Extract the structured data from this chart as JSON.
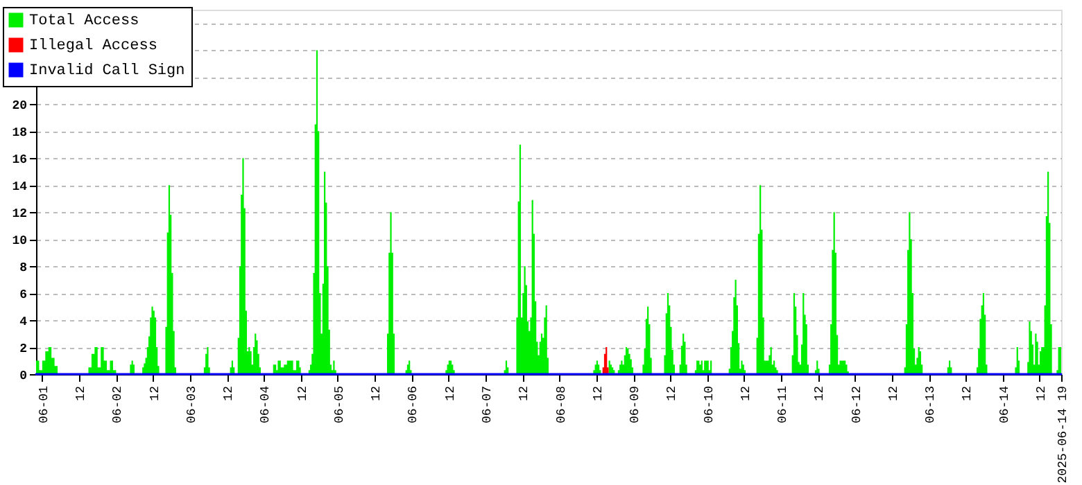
{
  "chart_data": {
    "type": "area",
    "legend": "top left",
    "grid": "y",
    "xlim": [
      "2025-05-31T22:00",
      "2025-06-14T19:00"
    ],
    "xticks": [
      {
        "value": "2025-06-01T00:00",
        "label": "06-01"
      },
      {
        "value": "2025-06-01T12:00",
        "label": "12"
      },
      {
        "value": "2025-06-02T00:00",
        "label": "06-02"
      },
      {
        "value": "2025-06-02T12:00",
        "label": "12"
      },
      {
        "value": "2025-06-03T00:00",
        "label": "06-03"
      },
      {
        "value": "2025-06-03T12:00",
        "label": "12"
      },
      {
        "value": "2025-06-04T00:00",
        "label": "06-04"
      },
      {
        "value": "2025-06-04T12:00",
        "label": "12"
      },
      {
        "value": "2025-06-05T00:00",
        "label": "06-05"
      },
      {
        "value": "2025-06-05T12:00",
        "label": "12"
      },
      {
        "value": "2025-06-06T00:00",
        "label": "06-06"
      },
      {
        "value": "2025-06-06T12:00",
        "label": "12"
      },
      {
        "value": "2025-06-07T00:00",
        "label": "06-07"
      },
      {
        "value": "2025-06-07T12:00",
        "label": "12"
      },
      {
        "value": "2025-06-08T00:00",
        "label": "06-08"
      },
      {
        "value": "2025-06-08T12:00",
        "label": "12"
      },
      {
        "value": "2025-06-09T00:00",
        "label": "06-09"
      },
      {
        "value": "2025-06-09T12:00",
        "label": "12"
      },
      {
        "value": "2025-06-10T00:00",
        "label": "06-10"
      },
      {
        "value": "2025-06-10T12:00",
        "label": "12"
      },
      {
        "value": "2025-06-11T00:00",
        "label": "06-11"
      },
      {
        "value": "2025-06-11T12:00",
        "label": "12"
      },
      {
        "value": "2025-06-12T00:00",
        "label": "06-12"
      },
      {
        "value": "2025-06-12T12:00",
        "label": "12"
      },
      {
        "value": "2025-06-13T00:00",
        "label": "06-13"
      },
      {
        "value": "2025-06-13T12:00",
        "label": "12"
      },
      {
        "value": "2025-06-14T00:00",
        "label": "06-14"
      },
      {
        "value": "2025-06-14T12:00",
        "label": "12"
      },
      {
        "value": "2025-06-14T19:00",
        "label": "2025-06-14 19"
      }
    ],
    "ylim": [
      0,
      27
    ],
    "yticks": [
      0,
      2,
      4,
      6,
      8,
      10,
      12,
      14,
      16,
      18,
      20,
      {
        "value": 22,
        "label": null
      },
      {
        "value": 24,
        "label": null
      },
      {
        "value": 26,
        "label": null
      }
    ],
    "series": [
      {
        "name": "Total Access",
        "color": "#00ee00",
        "x": [
          "2025-05-31T22:00",
          "2025-05-31T23:00",
          "2025-06-01T00:00",
          "2025-06-01T01:00",
          "2025-06-01T02:00",
          "2025-06-01T03:00",
          "2025-06-01T04:00",
          "2025-06-01T05:00",
          "2025-06-01T15:00",
          "2025-06-01T16:00",
          "2025-06-01T17:00",
          "2025-06-01T18:00",
          "2025-06-01T19:00",
          "2025-06-01T20:00",
          "2025-06-01T21:00",
          "2025-06-01T22:00",
          "2025-06-01T23:00",
          "2025-06-02T00:00",
          "2025-06-02T04:30",
          "2025-06-02T05:00",
          "2025-06-02T05:30",
          "2025-06-02T06:00",
          "2025-06-02T08:30",
          "2025-06-02T09:00",
          "2025-06-02T09:30",
          "2025-06-02T10:00",
          "2025-06-02T10:30",
          "2025-06-02T11:00",
          "2025-06-02T11:30",
          "2025-06-02T12:00",
          "2025-06-02T12:30",
          "2025-06-02T13:00",
          "2025-06-02T13:30",
          "2025-06-02T14:00",
          "2025-06-02T16:00",
          "2025-06-02T16:30",
          "2025-06-02T17:00",
          "2025-06-02T17:30",
          "2025-06-02T18:00",
          "2025-06-02T18:30",
          "2025-06-02T19:00",
          "2025-06-02T19:30",
          "2025-06-03T04:30",
          "2025-06-03T05:00",
          "2025-06-03T05:30",
          "2025-06-03T06:00",
          "2025-06-03T06:30",
          "2025-06-03T13:00",
          "2025-06-03T13:30",
          "2025-06-03T14:00",
          "2025-06-03T14:30",
          "2025-06-03T15:30",
          "2025-06-03T16:00",
          "2025-06-03T16:30",
          "2025-06-03T17:00",
          "2025-06-03T17:30",
          "2025-06-03T18:00",
          "2025-06-03T18:30",
          "2025-06-03T19:00",
          "2025-06-03T19:30",
          "2025-06-03T20:00",
          "2025-06-03T20:30",
          "2025-06-03T21:00",
          "2025-06-03T21:30",
          "2025-06-03T22:00",
          "2025-06-03T22:30",
          "2025-06-03T23:00",
          "2025-06-04T03:00",
          "2025-06-04T04:00",
          "2025-06-04T04:30",
          "2025-06-04T05:30",
          "2025-06-04T06:30",
          "2025-06-04T07:30",
          "2025-06-04T08:30",
          "2025-06-04T09:30",
          "2025-06-04T10:30",
          "2025-06-04T11:30",
          "2025-06-04T12:00",
          "2025-06-04T14:30",
          "2025-06-04T15:00",
          "2025-06-04T15:30",
          "2025-06-04T16:00",
          "2025-06-04T16:30",
          "2025-06-04T17:00",
          "2025-06-04T17:30",
          "2025-06-04T18:00",
          "2025-06-04T18:30",
          "2025-06-04T19:00",
          "2025-06-04T19:30",
          "2025-06-04T20:00",
          "2025-06-04T20:30",
          "2025-06-04T21:00",
          "2025-06-04T21:30",
          "2025-06-04T22:00",
          "2025-06-04T22:30",
          "2025-06-04T23:00",
          "2025-06-04T23:30",
          "2025-06-05T16:00",
          "2025-06-05T16:30",
          "2025-06-05T17:00",
          "2025-06-05T17:30",
          "2025-06-05T18:00",
          "2025-06-05T18:30",
          "2025-06-05T22:00",
          "2025-06-05T22:30",
          "2025-06-05T23:00",
          "2025-06-05T23:30",
          "2025-06-06T00:00",
          "2025-06-06T11:00",
          "2025-06-06T11:30",
          "2025-06-06T12:00",
          "2025-06-06T12:30",
          "2025-06-06T13:00",
          "2025-06-06T13:30",
          "2025-06-06T14:00",
          "2025-06-07T06:00",
          "2025-06-07T06:30",
          "2025-06-07T07:00",
          "2025-06-07T07:30",
          "2025-06-07T10:00",
          "2025-06-07T10:30",
          "2025-06-07T11:00",
          "2025-06-07T11:30",
          "2025-06-07T12:00",
          "2025-06-07T12:30",
          "2025-06-07T13:00",
          "2025-06-07T13:30",
          "2025-06-07T14:00",
          "2025-06-07T14:30",
          "2025-06-07T15:00",
          "2025-06-07T15:30",
          "2025-06-07T16:00",
          "2025-06-07T16:30",
          "2025-06-07T17:00",
          "2025-06-07T17:30",
          "2025-06-07T18:00",
          "2025-06-07T18:30",
          "2025-06-07T19:00",
          "2025-06-07T19:30",
          "2025-06-07T20:00",
          "2025-06-07T20:30",
          "2025-06-08T11:00",
          "2025-06-08T11:30",
          "2025-06-08T12:00",
          "2025-06-08T12:30",
          "2025-06-08T13:00",
          "2025-06-08T13:30",
          "2025-06-08T16:00",
          "2025-06-08T16:30",
          "2025-06-08T17:00",
          "2025-06-08T17:30",
          "2025-06-08T18:00",
          "2025-06-08T19:00",
          "2025-06-08T19:30",
          "2025-06-08T20:00",
          "2025-06-08T20:30",
          "2025-06-08T21:00",
          "2025-06-08T21:30",
          "2025-06-08T22:00",
          "2025-06-08T22:30",
          "2025-06-08T23:00",
          "2025-06-08T23:30",
          "2025-06-09T00:00",
          "2025-06-09T03:00",
          "2025-06-09T03:30",
          "2025-06-09T04:00",
          "2025-06-09T04:30",
          "2025-06-09T05:00",
          "2025-06-09T05:30",
          "2025-06-09T06:00",
          "2025-06-09T10:00",
          "2025-06-09T10:30",
          "2025-06-09T11:00",
          "2025-06-09T11:30",
          "2025-06-09T12:00",
          "2025-06-09T12:30",
          "2025-06-09T13:00",
          "2025-06-09T13:30",
          "2025-06-09T15:00",
          "2025-06-09T15:30",
          "2025-06-09T16:00",
          "2025-06-09T16:30",
          "2025-06-09T17:00",
          "2025-06-09T17:30",
          "2025-06-09T20:00",
          "2025-06-09T20:30",
          "2025-06-09T21:00",
          "2025-06-09T21:30",
          "2025-06-09T22:00",
          "2025-06-09T22:30",
          "2025-06-09T23:00",
          "2025-06-09T23:30",
          "2025-06-10T00:00",
          "2025-06-10T00:30",
          "2025-06-10T01:00",
          "2025-06-10T01:30",
          "2025-06-10T07:00",
          "2025-06-10T07:30",
          "2025-06-10T08:00",
          "2025-06-10T08:30",
          "2025-06-10T09:00",
          "2025-06-10T09:30",
          "2025-06-10T10:00",
          "2025-06-10T10:30",
          "2025-06-10T11:00",
          "2025-06-10T11:30",
          "2025-06-10T12:00",
          "2025-06-10T12:30",
          "2025-06-10T16:00",
          "2025-06-10T16:30",
          "2025-06-10T17:00",
          "2025-06-10T17:30",
          "2025-06-10T18:00",
          "2025-06-10T18:30",
          "2025-06-10T19:00",
          "2025-06-10T19:30",
          "2025-06-10T20:00",
          "2025-06-10T20:30",
          "2025-06-10T21:00",
          "2025-06-10T21:30",
          "2025-06-10T22:00",
          "2025-06-10T22:30",
          "2025-06-10T23:00",
          "2025-06-11T03:30",
          "2025-06-11T04:00",
          "2025-06-11T04:30",
          "2025-06-11T05:00",
          "2025-06-11T05:30",
          "2025-06-11T06:00",
          "2025-06-11T06:30",
          "2025-06-11T07:00",
          "2025-06-11T07:30",
          "2025-06-11T08:00",
          "2025-06-11T08:30",
          "2025-06-11T09:00",
          "2025-06-11T11:00",
          "2025-06-11T11:30",
          "2025-06-11T12:00",
          "2025-06-11T12:30",
          "2025-06-11T15:30",
          "2025-06-11T16:00",
          "2025-06-11T16:30",
          "2025-06-11T17:00",
          "2025-06-11T17:30",
          "2025-06-11T18:00",
          "2025-06-11T18:30",
          "2025-06-11T19:00",
          "2025-06-11T19:30",
          "2025-06-11T20:00",
          "2025-06-11T20:30",
          "2025-06-11T21:00",
          "2025-06-11T21:30",
          "2025-06-11T22:00",
          "2025-06-12T16:00",
          "2025-06-12T16:30",
          "2025-06-12T17:00",
          "2025-06-12T17:30",
          "2025-06-12T18:00",
          "2025-06-12T18:30",
          "2025-06-12T19:00",
          "2025-06-12T19:30",
          "2025-06-12T20:00",
          "2025-06-12T20:30",
          "2025-06-12T21:00",
          "2025-06-12T21:30",
          "2025-06-12T22:00",
          "2025-06-13T06:00",
          "2025-06-13T06:30",
          "2025-06-13T07:00",
          "2025-06-13T07:30",
          "2025-06-13T15:30",
          "2025-06-13T16:00",
          "2025-06-13T16:30",
          "2025-06-13T17:00",
          "2025-06-13T17:30",
          "2025-06-13T18:00",
          "2025-06-13T18:30",
          "2025-06-13T19:00",
          "2025-06-14T04:00",
          "2025-06-14T04:30",
          "2025-06-14T05:00",
          "2025-06-14T05:30",
          "2025-06-14T08:00",
          "2025-06-14T08:30",
          "2025-06-14T09:00",
          "2025-06-14T09:30",
          "2025-06-14T10:00",
          "2025-06-14T10:30",
          "2025-06-14T11:00",
          "2025-06-14T11:30",
          "2025-06-14T12:00",
          "2025-06-14T12:30",
          "2025-06-14T13:00",
          "2025-06-14T13:30",
          "2025-06-14T14:00",
          "2025-06-14T14:30",
          "2025-06-14T15:00",
          "2025-06-14T15:30",
          "2025-06-14T16:00",
          "2025-06-14T17:30",
          "2025-06-14T18:00",
          "2025-06-14T18:30",
          "2025-06-14T19:00"
        ],
        "values": [
          1,
          0.3,
          1,
          1.7,
          2,
          1.2,
          0.6,
          0,
          0.5,
          1.5,
          2,
          0.5,
          2,
          1,
          0.3,
          1,
          0.3,
          0,
          0.7,
          1,
          0.7,
          0,
          0.5,
          0.8,
          1.2,
          2,
          2.8,
          4.2,
          5,
          4.7,
          4.2,
          2,
          0.6,
          0,
          3.5,
          10.5,
          14,
          11.8,
          7.5,
          3.2,
          0.5,
          0,
          0.5,
          1.5,
          2,
          0.5,
          0,
          0.5,
          1,
          0.5,
          0,
          2.7,
          8,
          13.3,
          16,
          12.3,
          4.7,
          1.7,
          2,
          1.7,
          0.7,
          2,
          3,
          2.5,
          1.5,
          0.5,
          0,
          0.7,
          0.3,
          1,
          0.5,
          0.7,
          1,
          1,
          0.3,
          1,
          0.5,
          0,
          0.3,
          0.7,
          1.5,
          7.5,
          18.5,
          24,
          18,
          6,
          3,
          6.7,
          15,
          12.7,
          8,
          3.3,
          0.7,
          0.3,
          1,
          0.3,
          0,
          3,
          9,
          12,
          9,
          3,
          0,
          0.3,
          0.7,
          1,
          0.3,
          0,
          0.3,
          0.7,
          1,
          1,
          0.7,
          0.3,
          0,
          0.3,
          1,
          0.5,
          0,
          4.2,
          12.8,
          17,
          4.2,
          6,
          8,
          6.6,
          3.9,
          3.2,
          4.2,
          12.9,
          10.4,
          5.4,
          2.4,
          1.4,
          2.4,
          3,
          2.7,
          4.2,
          5.1,
          1.2,
          0,
          0.3,
          0.7,
          1,
          0.7,
          0.3,
          0,
          1,
          0.7,
          0.5,
          0.3,
          0,
          0.3,
          0.7,
          1,
          0.7,
          1.4,
          2,
          1.9,
          1.5,
          1.1,
          0.5,
          0,
          0.7,
          1.9,
          4.1,
          5,
          3.7,
          1.2,
          0,
          1.4,
          4.5,
          6,
          5.1,
          3.5,
          1.8,
          0.7,
          0,
          0.7,
          2.1,
          3,
          2.4,
          0.7,
          0,
          0.3,
          1,
          1,
          0.7,
          1,
          0.3,
          1,
          1,
          1,
          0.3,
          1,
          0,
          0.4,
          2,
          3.2,
          5.7,
          7,
          5.1,
          2.3,
          0.4,
          1,
          0.7,
          0.3,
          0,
          2.7,
          10.4,
          14,
          10.7,
          4.2,
          1,
          1,
          1,
          1.4,
          2,
          0.7,
          1,
          0.5,
          0.3,
          0,
          1.4,
          6,
          5,
          2.9,
          0.9,
          0.7,
          2.2,
          6,
          4.4,
          3.7,
          0.7,
          0,
          0.3,
          1,
          0.4,
          0,
          0.7,
          3.7,
          9.2,
          12,
          9,
          2.9,
          0.7,
          1,
          1,
          1,
          1,
          0.7,
          0.2,
          0,
          0.5,
          3.7,
          9.2,
          12,
          10,
          6,
          1.9,
          0.7,
          1.2,
          2,
          1.7,
          0.7,
          0,
          0.5,
          1,
          0.5,
          0,
          0.5,
          1.9,
          4.1,
          5.1,
          6,
          4.4,
          0.7,
          0,
          0.5,
          2,
          1,
          0,
          0.9,
          3.9,
          3.2,
          2.2,
          0.7,
          3,
          2.4,
          0.7,
          1.7,
          2,
          2,
          5.1,
          11.7,
          15,
          11.2,
          3.7,
          0,
          0.3,
          2,
          2,
          0
        ]
      },
      {
        "name": "Illegal Access",
        "color": "#ff0000",
        "x": [
          "2025-06-08T14:00",
          "2025-06-08T14:30",
          "2025-06-08T15:00",
          "2025-06-08T15:30",
          "2025-06-08T16:00"
        ],
        "values": [
          0.5,
          1.5,
          2,
          0.5,
          0
        ]
      },
      {
        "name": "Invalid Call Sign",
        "color": "#0000ff",
        "type": "line",
        "x": [
          "2025-05-31T22:00",
          "2025-06-14T19:00"
        ],
        "values": [
          0,
          0
        ]
      }
    ]
  }
}
